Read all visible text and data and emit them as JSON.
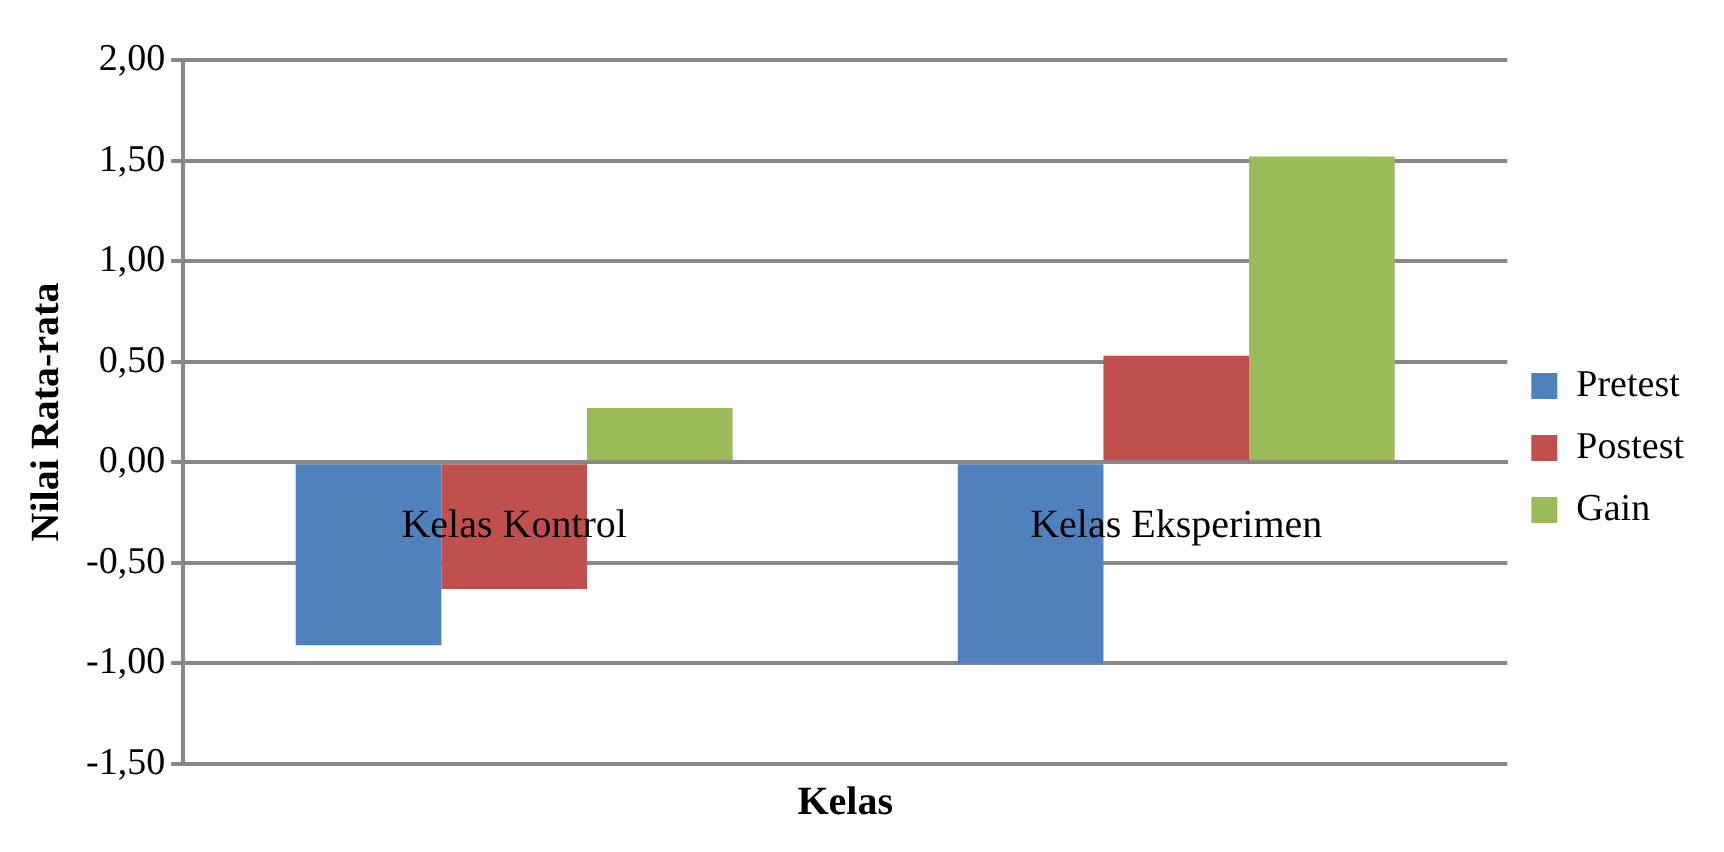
{
  "chart_data": {
    "type": "bar",
    "xlabel": "Kelas",
    "ylabel": "Nilai Rata-rata",
    "categories": [
      "Kelas Kontrol",
      "Kelas Eksperimen"
    ],
    "series": [
      {
        "name": "Pretest",
        "color": "#4f81bd",
        "values": [
          -0.91,
          -1.0
        ]
      },
      {
        "name": "Postest",
        "color": "#c0504d",
        "values": [
          -0.63,
          0.53
        ]
      },
      {
        "name": "Gain",
        "color": "#9bbb59",
        "values": [
          0.27,
          1.52
        ]
      }
    ],
    "ylim": [
      -1.5,
      2
    ],
    "yticks": [
      {
        "value": -1.5,
        "label": "-1,50"
      },
      {
        "value": -1,
        "label": "-1,00"
      },
      {
        "value": -0.5,
        "label": "-0,50"
      },
      {
        "value": 0,
        "label": "0,00"
      },
      {
        "value": 0.5,
        "label": "0,50"
      },
      {
        "value": 1,
        "label": "1,00"
      },
      {
        "value": 1.5,
        "label": "1,50"
      },
      {
        "value": 2,
        "label": "2,00"
      }
    ],
    "grid": "y",
    "legend": "right"
  }
}
